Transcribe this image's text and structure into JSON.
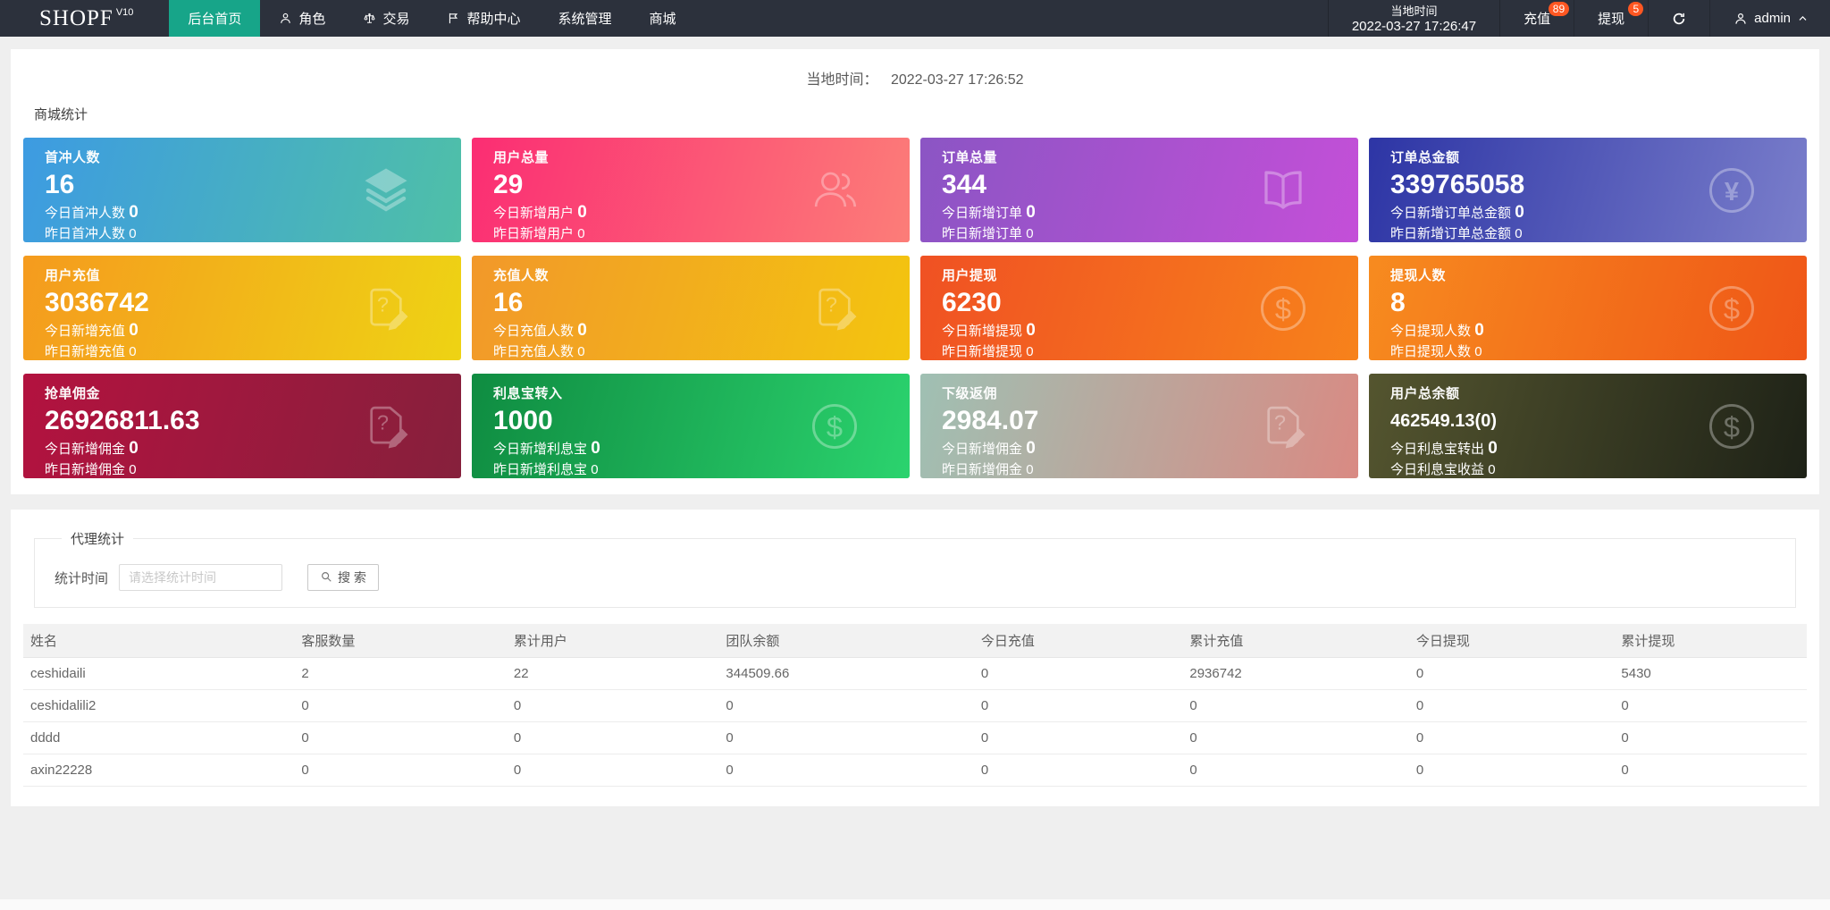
{
  "colors": {
    "navbar_bg": "#2c313c",
    "active": "#17a589",
    "badge": "#ff5722",
    "page_bg": "#efefef"
  },
  "navbar": {
    "logo": "SHOPF",
    "logo_sup": "V10",
    "items": [
      {
        "label": "后台首页",
        "icon": "",
        "active": true
      },
      {
        "label": "角色",
        "icon": "person"
      },
      {
        "label": "交易",
        "icon": "scales"
      },
      {
        "label": "帮助中心",
        "icon": "flag"
      },
      {
        "label": "系统管理",
        "icon": ""
      },
      {
        "label": "商城",
        "icon": ""
      }
    ],
    "local_time_label": "当地时间",
    "local_time_value": "2022-03-27 17:26:47",
    "recharge_label": "充值",
    "recharge_badge": "89",
    "withdraw_label": "提现",
    "withdraw_badge": "5",
    "username": "admin"
  },
  "content": {
    "local_time_label": "当地时间：",
    "local_time_value": "2022-03-27 17:26:52",
    "mall_stats_title": "商城统计",
    "cards": [
      {
        "title": "首冲人数",
        "value": "16",
        "line2_label": "今日首冲人数",
        "line2_value": "0",
        "line3_label": "昨日首冲人数",
        "line3_value": "0",
        "icon": "layers",
        "gradient": [
          "#3d9be2",
          "#4fc0a7"
        ]
      },
      {
        "title": "用户总量",
        "value": "29",
        "line2_label": "今日新增用户",
        "line2_value": "0",
        "line3_label": "昨日新增用户",
        "line3_value": "0",
        "icon": "users",
        "gradient": [
          "#fb2d73",
          "#fc7d78"
        ]
      },
      {
        "title": "订单总量",
        "value": "344",
        "line2_label": "今日新增订单",
        "line2_value": "0",
        "line3_label": "昨日新增订单",
        "line3_value": "0",
        "icon": "book",
        "gradient": [
          "#8b55c4",
          "#c44fd8"
        ]
      },
      {
        "title": "订单总金额",
        "value": "339765058",
        "line2_label": "今日新增订单总金额",
        "line2_value": "0",
        "line3_label": "昨日新增订单总金额",
        "line3_value": "0",
        "icon": "yen",
        "gradient": [
          "#2d35a5",
          "#7a7ecb"
        ]
      },
      {
        "title": "用户充值",
        "value": "3036742",
        "line2_label": "今日新增充值",
        "line2_value": "0",
        "line3_label": "昨日新增充值",
        "line3_value": "0",
        "icon": "doc",
        "gradient": [
          "#f59b1e",
          "#eed314"
        ]
      },
      {
        "title": "充值人数",
        "value": "16",
        "line2_label": "今日充值人数",
        "line2_value": "0",
        "line3_label": "昨日充值人数",
        "line3_value": "0",
        "icon": "doc",
        "gradient": [
          "#f2982a",
          "#f3c50f"
        ]
      },
      {
        "title": "用户提现",
        "value": "6230",
        "line2_label": "今日新增提现",
        "line2_value": "0",
        "line3_label": "昨日新增提现",
        "line3_value": "0",
        "icon": "dollar",
        "gradient": [
          "#f05123",
          "#f7821b"
        ]
      },
      {
        "title": "提现人数",
        "value": "8",
        "line2_label": "今日提现人数",
        "line2_value": "0",
        "line3_label": "昨日提现人数",
        "line3_value": "0",
        "icon": "dollar",
        "gradient": [
          "#f78b1f",
          "#ef5617"
        ]
      },
      {
        "title": "抢单佣金",
        "value": "26926811.63",
        "line2_label": "今日新增佣金",
        "line2_value": "0",
        "line3_label": "昨日新增佣金",
        "line3_value": "0",
        "icon": "doc",
        "gradient": [
          "#b3123f",
          "#86203c"
        ]
      },
      {
        "title": "利息宝转入",
        "value": "1000",
        "line2_label": "今日新增利息宝",
        "line2_value": "0",
        "line3_label": "昨日新增利息宝",
        "line3_value": "0",
        "icon": "dollar",
        "gradient": [
          "#0f8c41",
          "#2bd36e"
        ]
      },
      {
        "title": "下级返佣",
        "value": "2984.07",
        "line2_label": "今日新增佣金",
        "line2_value": "0",
        "line3_label": "昨日新增佣金",
        "line3_value": "0",
        "icon": "doc",
        "gradient": [
          "#9fc0b3",
          "#d98a83"
        ]
      },
      {
        "title": "用户总余额",
        "value": "462549.13(0)",
        "small_value": true,
        "line2_label": "今日利息宝转出",
        "line2_value": "0",
        "line3_label": "今日利息宝收益",
        "line3_value": "0",
        "icon": "dollar",
        "gradient": [
          "#54552f",
          "#1e2217"
        ]
      }
    ],
    "agent": {
      "title": "代理统计",
      "time_label": "统计时间",
      "time_placeholder": "请选择统计时间",
      "search_label": "搜 索",
      "table": {
        "headers": [
          "姓名",
          "客服数量",
          "累计用户",
          "团队余额",
          "今日充值",
          "累计充值",
          "今日提现",
          "累计提现"
        ],
        "rows": [
          [
            "ceshidaili",
            "2",
            "22",
            "344509.66",
            "0",
            "2936742",
            "0",
            "5430"
          ],
          [
            "ceshidalili2",
            "0",
            "0",
            "0",
            "0",
            "0",
            "0",
            "0"
          ],
          [
            "dddd",
            "0",
            "0",
            "0",
            "0",
            "0",
            "0",
            "0"
          ],
          [
            "axin22228",
            "0",
            "0",
            "0",
            "0",
            "0",
            "0",
            "0"
          ]
        ]
      }
    }
  }
}
